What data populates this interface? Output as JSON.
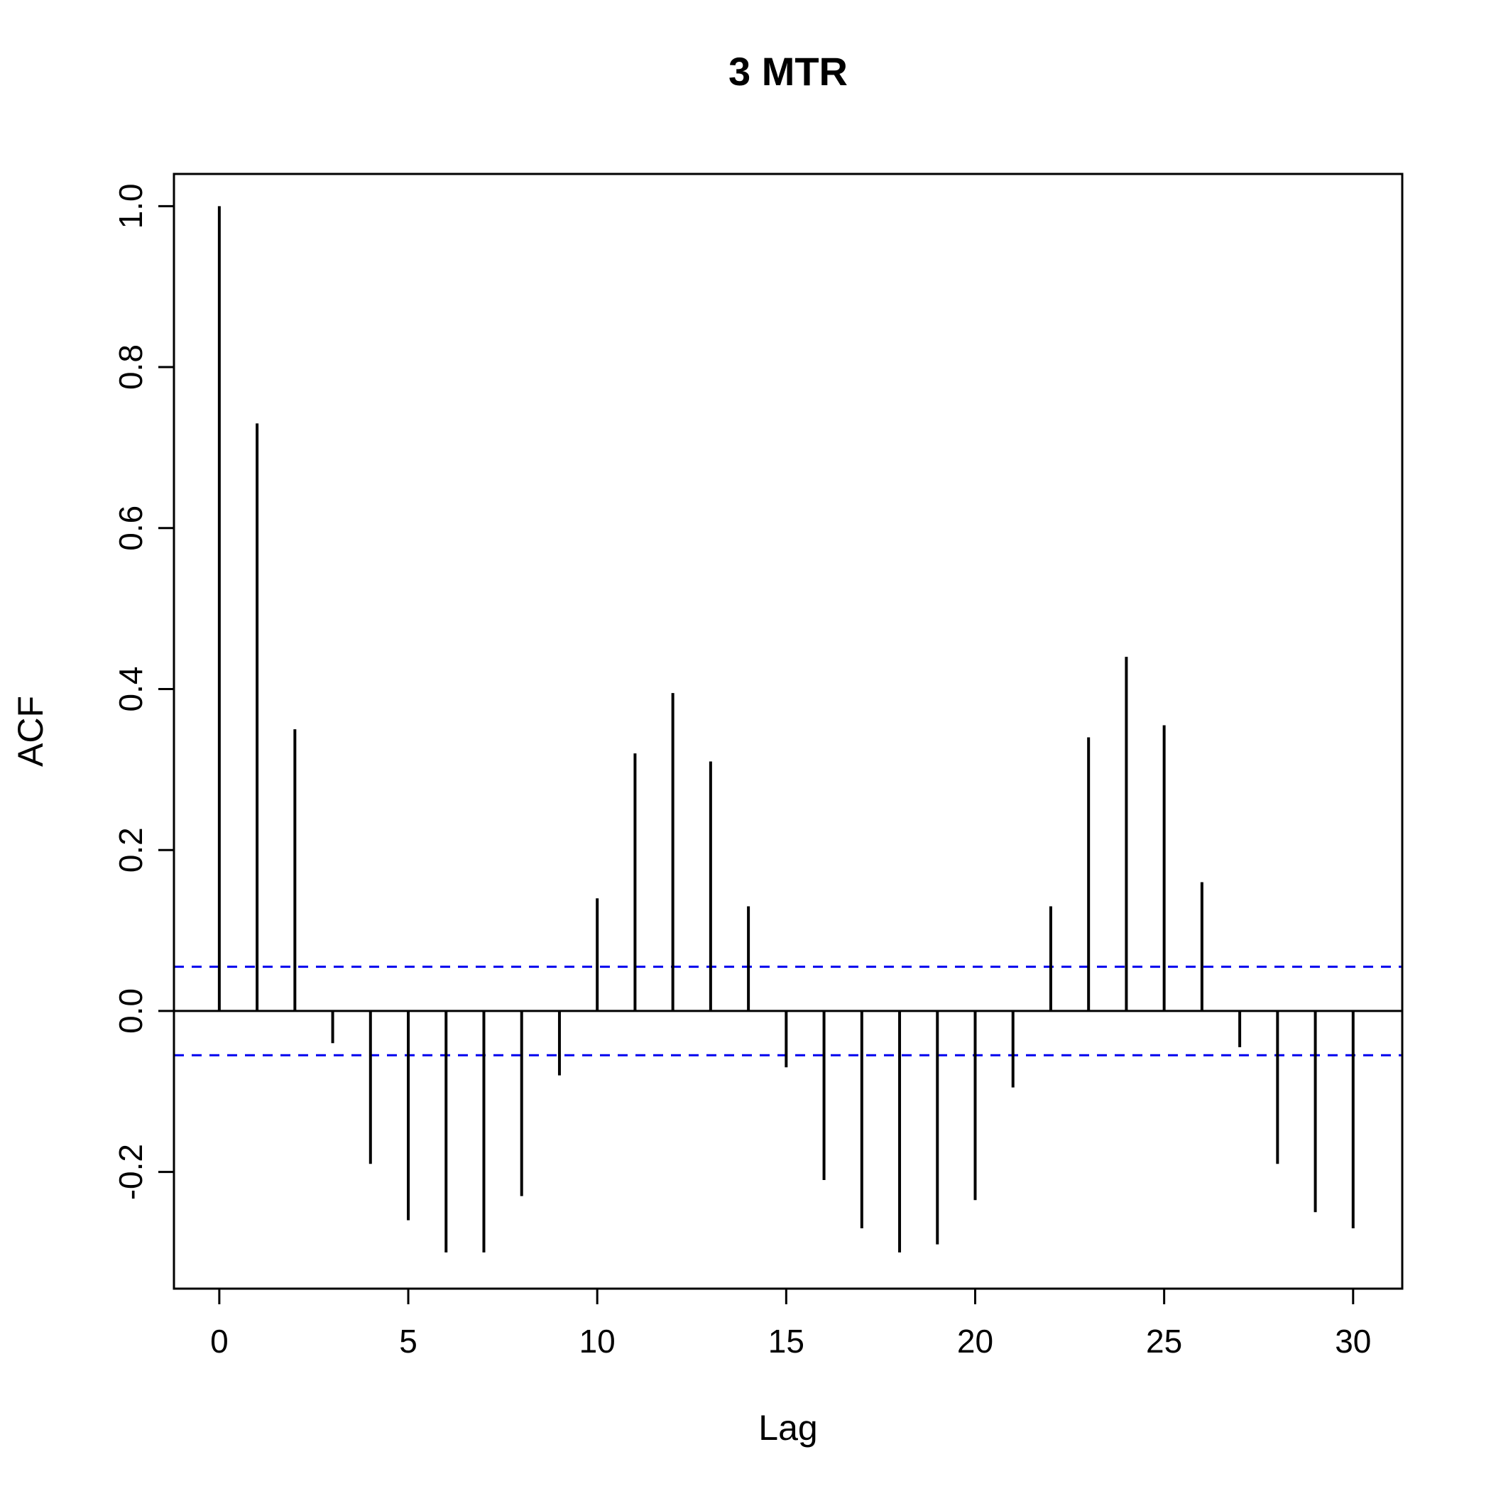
{
  "chart_data": {
    "type": "bar",
    "variant": "acf-stem-plot",
    "title": "3 MTR",
    "xlabel": "Lag",
    "ylabel": "ACF",
    "x": [
      0,
      1,
      2,
      3,
      4,
      5,
      6,
      7,
      8,
      9,
      10,
      11,
      12,
      13,
      14,
      15,
      16,
      17,
      18,
      19,
      20,
      21,
      22,
      23,
      24,
      25,
      26,
      27,
      28,
      29,
      30
    ],
    "values": [
      1.0,
      0.73,
      0.35,
      -0.04,
      -0.19,
      -0.26,
      -0.3,
      -0.3,
      -0.23,
      -0.08,
      0.14,
      0.32,
      0.395,
      0.31,
      0.13,
      -0.07,
      -0.21,
      -0.27,
      -0.3,
      -0.29,
      -0.235,
      -0.095,
      0.13,
      0.34,
      0.44,
      0.355,
      0.16,
      -0.045,
      -0.19,
      -0.25,
      -0.27
    ],
    "xticks": [
      0,
      5,
      10,
      15,
      20,
      25,
      30
    ],
    "yticks": [
      1.0,
      0.8,
      0.6,
      0.4,
      0.2,
      0.0,
      -0.2
    ],
    "xlim": [
      -1.2,
      31.3
    ],
    "ylim": [
      -0.345,
      1.04
    ],
    "confidence_bounds": [
      0.055,
      -0.055
    ],
    "grid": false,
    "legend": "none",
    "colors": {
      "bar": "#000000",
      "confidence_line": "#0000EE",
      "axis": "#000000",
      "background": "#FFFFFF"
    }
  }
}
